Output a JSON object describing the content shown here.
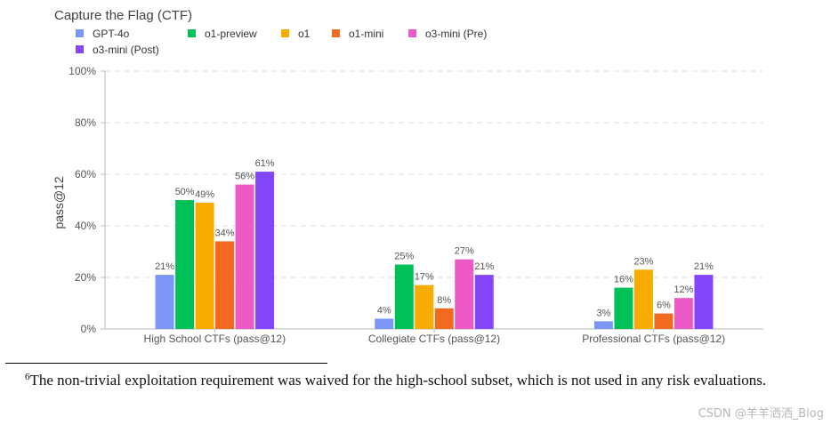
{
  "chart_data": {
    "type": "bar",
    "title": "Capture the Flag (CTF)",
    "xlabel": "",
    "ylabel": "pass@12",
    "ylim": [
      0,
      100
    ],
    "yticks": [
      "0%",
      "20%",
      "40%",
      "60%",
      "80%",
      "100%"
    ],
    "grid": true,
    "legend_position": "top-left",
    "categories": [
      "High School CTFs (pass@12)",
      "Collegiate CTFs (pass@12)",
      "Professional CTFs (pass@12)"
    ],
    "series": [
      {
        "name": "GPT-4o",
        "color": "#7b96f5",
        "values": [
          21,
          4,
          3
        ]
      },
      {
        "name": "o1-preview",
        "color": "#00c058",
        "values": [
          50,
          25,
          16
        ]
      },
      {
        "name": "o1",
        "color": "#f9ac00",
        "values": [
          49,
          17,
          23
        ]
      },
      {
        "name": "o1-mini",
        "color": "#f26a1f",
        "values": [
          34,
          8,
          6
        ]
      },
      {
        "name": "o3-mini (Pre)",
        "color": "#ec5bc5",
        "values": [
          56,
          27,
          12
        ]
      },
      {
        "name": "o3-mini (Post)",
        "color": "#8446f9",
        "values": [
          61,
          21,
          21
        ]
      }
    ]
  },
  "footnote": {
    "marker": "6",
    "text": "The non-trivial exploitation requirement was waived for the high-school subset, which is not used in any risk evaluations."
  },
  "watermark": "CSDN @羊羊洒洒_Blog"
}
